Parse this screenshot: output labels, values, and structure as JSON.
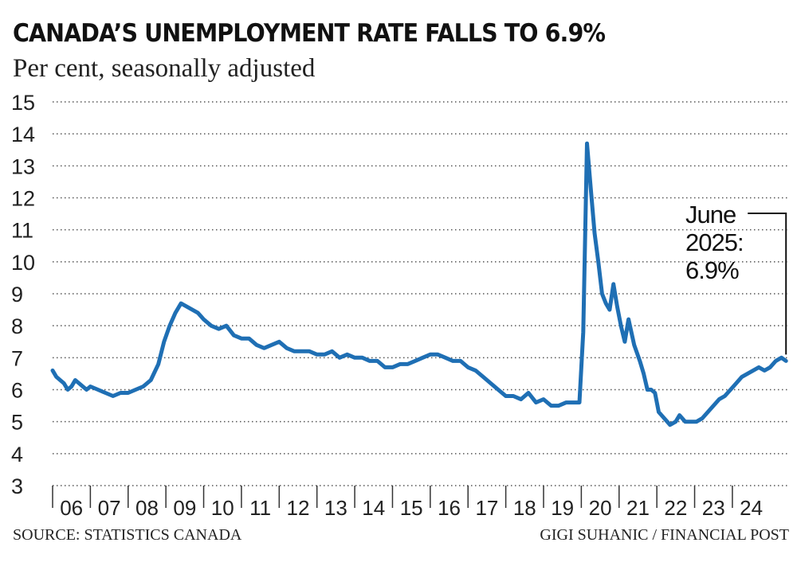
{
  "chart_data": {
    "type": "line",
    "title": "CANADA’S UNEMPLOYMENT RATE FALLS TO 6.9%",
    "subtitle": "Per cent, seasonally adjusted",
    "xlabel": "",
    "ylabel": "",
    "ylim": [
      3,
      15
    ],
    "yticks": [
      3,
      4,
      5,
      6,
      7,
      8,
      9,
      10,
      11,
      12,
      13,
      14,
      15
    ],
    "xlim": [
      2006,
      2025.5
    ],
    "xtick_labels": [
      "06",
      "07",
      "08",
      "09",
      "10",
      "11",
      "12",
      "13",
      "14",
      "15",
      "16",
      "17",
      "18",
      "19",
      "20",
      "21",
      "22",
      "23",
      "24"
    ],
    "grid": "horizontal dotted",
    "line_color": "#1f6fb4",
    "series": [
      {
        "x": [
          2006.0,
          2006.1,
          2006.2,
          2006.3,
          2006.4,
          2006.5,
          2006.6,
          2006.7,
          2006.8,
          2006.9,
          2007.0,
          2007.2,
          2007.4,
          2007.6,
          2007.8,
          2008.0,
          2008.2,
          2008.4,
          2008.6,
          2008.8,
          2008.95,
          2009.1,
          2009.25,
          2009.4,
          2009.55,
          2009.7,
          2009.85,
          2010.0,
          2010.2,
          2010.4,
          2010.6,
          2010.8,
          2011.0,
          2011.2,
          2011.4,
          2011.6,
          2011.8,
          2012.0,
          2012.2,
          2012.4,
          2012.6,
          2012.8,
          2013.0,
          2013.2,
          2013.4,
          2013.6,
          2013.8,
          2014.0,
          2014.2,
          2014.4,
          2014.6,
          2014.8,
          2015.0,
          2015.2,
          2015.4,
          2015.6,
          2015.8,
          2016.0,
          2016.2,
          2016.4,
          2016.6,
          2016.8,
          2017.0,
          2017.2,
          2017.4,
          2017.6,
          2017.8,
          2018.0,
          2018.2,
          2018.4,
          2018.6,
          2018.8,
          2019.0,
          2019.2,
          2019.4,
          2019.6,
          2019.8,
          2019.95,
          2020.05,
          2020.15,
          2020.25,
          2020.35,
          2020.45,
          2020.55,
          2020.65,
          2020.75,
          2020.85,
          2020.95,
          2021.05,
          2021.15,
          2021.25,
          2021.4,
          2021.55,
          2021.65,
          2021.75,
          2021.85,
          2021.95,
          2022.05,
          2022.2,
          2022.35,
          2022.5,
          2022.6,
          2022.75,
          2022.9,
          2023.05,
          2023.2,
          2023.35,
          2023.5,
          2023.65,
          2023.8,
          2023.95,
          2024.1,
          2024.25,
          2024.4,
          2024.55,
          2024.7,
          2024.85,
          2025.0,
          2025.15,
          2025.3,
          2025.42
        ],
        "values": [
          6.6,
          6.4,
          6.3,
          6.2,
          6.0,
          6.1,
          6.3,
          6.2,
          6.1,
          6.0,
          6.1,
          6.0,
          5.9,
          5.8,
          5.9,
          5.9,
          6.0,
          6.1,
          6.3,
          6.8,
          7.5,
          8.0,
          8.4,
          8.7,
          8.6,
          8.5,
          8.4,
          8.2,
          8.0,
          7.9,
          8.0,
          7.7,
          7.6,
          7.6,
          7.4,
          7.3,
          7.4,
          7.5,
          7.3,
          7.2,
          7.2,
          7.2,
          7.1,
          7.1,
          7.2,
          7.0,
          7.1,
          7.0,
          7.0,
          6.9,
          6.9,
          6.7,
          6.7,
          6.8,
          6.8,
          6.9,
          7.0,
          7.1,
          7.1,
          7.0,
          6.9,
          6.9,
          6.7,
          6.6,
          6.4,
          6.2,
          6.0,
          5.8,
          5.8,
          5.7,
          5.9,
          5.6,
          5.7,
          5.5,
          5.5,
          5.6,
          5.6,
          5.6,
          7.8,
          13.7,
          12.3,
          10.9,
          10.0,
          9.0,
          8.7,
          8.5,
          9.3,
          8.6,
          8.0,
          7.5,
          8.2,
          7.4,
          6.9,
          6.5,
          6.0,
          6.0,
          5.9,
          5.3,
          5.1,
          4.9,
          5.0,
          5.2,
          5.0,
          5.0,
          5.0,
          5.1,
          5.3,
          5.5,
          5.7,
          5.8,
          6.0,
          6.2,
          6.4,
          6.5,
          6.6,
          6.7,
          6.6,
          6.7,
          6.9,
          7.0,
          6.9
        ]
      }
    ],
    "annotation": {
      "lines": [
        "June",
        "2025:",
        "6.9%"
      ],
      "x": 2025.42,
      "y": 6.9
    }
  },
  "footer": {
    "source": "SOURCE: STATISTICS CANADA",
    "credit": "GIGI SUHANIC / FINANCIAL POST"
  }
}
